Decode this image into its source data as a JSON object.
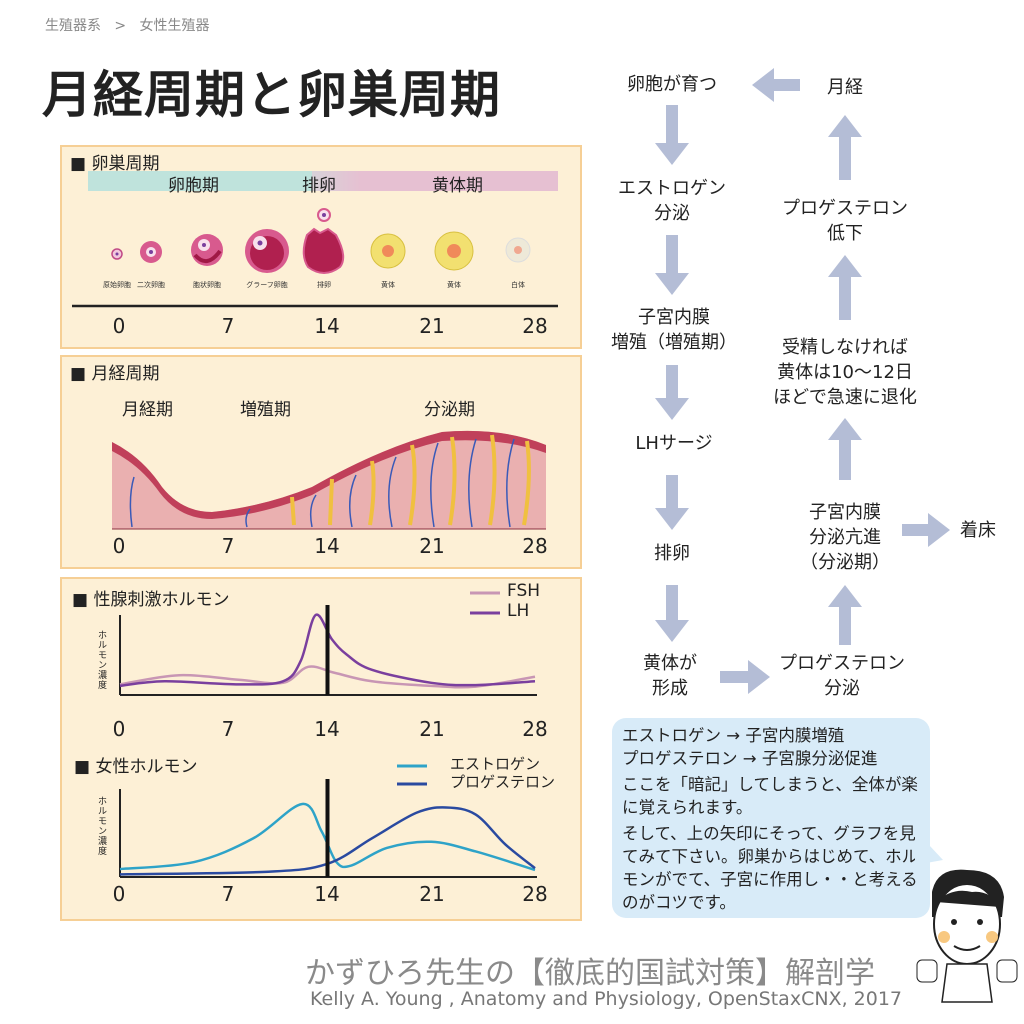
{
  "breadcrumb": {
    "parent": "生殖器系",
    "separator": ">",
    "current": "女性生殖器"
  },
  "title": "月経周期と卵巣周期",
  "ovarian": {
    "heading": "■ 卵巣周期",
    "phases": [
      "卵胞期",
      "排卵",
      "黄体期"
    ],
    "stages": [
      "原始卵胞",
      "二次卵胞",
      "胞状卵胞",
      "グラーフ卵胞",
      "排卵",
      "黄体",
      "黄体",
      "白体"
    ],
    "ticks": [
      "0",
      "7",
      "14",
      "21",
      "28"
    ],
    "colors": {
      "follicular": "#bfe3dc",
      "luteal": "#e6c0d2"
    }
  },
  "menstrual": {
    "heading": "■ 月経周期",
    "phases": [
      "月経期",
      "増殖期",
      "分泌期"
    ],
    "ticks": [
      "0",
      "7",
      "14",
      "21",
      "28"
    ]
  },
  "y_label": "ホルモン濃度",
  "chart_data": [
    {
      "type": "line",
      "title": "■ 性腺刺激ホルモン",
      "ylabel": "ホルモン濃度",
      "xlim": [
        0,
        28
      ],
      "ylim": [
        0,
        105
      ],
      "x_ticks": [
        "0",
        "7",
        "14",
        "21",
        "28"
      ],
      "marker_day": 14,
      "legend": "top-right",
      "series": [
        {
          "name": "FSH",
          "color": "#c896b4",
          "points": [
            [
              0,
              14
            ],
            [
              4,
              26
            ],
            [
              8,
              20
            ],
            [
              11,
              16
            ],
            [
              12.7,
              37
            ],
            [
              14.5,
              29
            ],
            [
              17,
              18
            ],
            [
              21,
              12
            ],
            [
              24,
              11
            ],
            [
              28,
              24
            ]
          ]
        },
        {
          "name": "LH",
          "color": "#7a3f9e",
          "points": [
            [
              0,
              12
            ],
            [
              3,
              18
            ],
            [
              8,
              14
            ],
            [
              11,
              18
            ],
            [
              12.2,
              45
            ],
            [
              13.2,
              105
            ],
            [
              14.3,
              73
            ],
            [
              15.3,
              53
            ],
            [
              17,
              33
            ],
            [
              21,
              16
            ],
            [
              24,
              13
            ],
            [
              28,
              18
            ]
          ]
        }
      ]
    },
    {
      "type": "line",
      "title": "■ 女性ホルモン",
      "ylabel": "ホルモン濃度",
      "xlim": [
        0,
        28
      ],
      "ylim": [
        0,
        100
      ],
      "x_ticks": [
        "0",
        "7",
        "14",
        "21",
        "28"
      ],
      "marker_day": 14,
      "legend": "top-right",
      "series": [
        {
          "name": "エストロゲン",
          "color": "#2ea3c8",
          "points": [
            [
              0,
              9
            ],
            [
              5,
              17
            ],
            [
              9,
              44
            ],
            [
              12.3,
              83
            ],
            [
              13.6,
              52
            ],
            [
              14.6,
              17
            ],
            [
              15.6,
              13
            ],
            [
              18,
              33
            ],
            [
              21,
              40
            ],
            [
              24,
              29
            ],
            [
              28,
              8
            ]
          ]
        },
        {
          "name": "プロゲステロン",
          "color": "#2a4aa0",
          "points": [
            [
              0,
              3
            ],
            [
              10,
              6
            ],
            [
              14,
              15
            ],
            [
              17,
              44
            ],
            [
              20,
              73
            ],
            [
              22,
              79
            ],
            [
              24,
              71
            ],
            [
              26,
              37
            ],
            [
              28,
              10
            ]
          ]
        }
      ]
    }
  ],
  "flow": {
    "left": [
      "卵胞が育つ",
      "エストロゲン\n分泌",
      "子宮内膜\n増殖（増殖期）",
      "LHサージ",
      "排卵",
      "黄体が\n形成"
    ],
    "right": [
      "プロゲステロン\n分泌",
      "子宮内膜\n分泌亢進\n（分泌期）",
      "受精しなければ\n黄体は10〜12日\nほどで急速に退化",
      "プロゲステロン\n低下",
      "月経"
    ],
    "branch": "着床",
    "arrow_color": "#b4bdd6"
  },
  "bubble": {
    "lines": [
      "エストロゲン → 子宮内膜増殖",
      "プロゲステロン → 子宮腺分泌促進"
    ],
    "p1": "ここを「暗記」してしまうと、全体が楽に覚えられます。",
    "p2": "そして、上の矢印にそって、グラフを見てみて下さい。卵巣からはじめて、ホルモンがでて、子宮に作用し・・と考えるのがコツです。"
  },
  "footer": {
    "brand": "かずひろ先生の【徹底的国試対策】解剖学",
    "credit": "Kelly A. Young , Anatomy and Physiology, OpenStaxCNX, 2017"
  }
}
